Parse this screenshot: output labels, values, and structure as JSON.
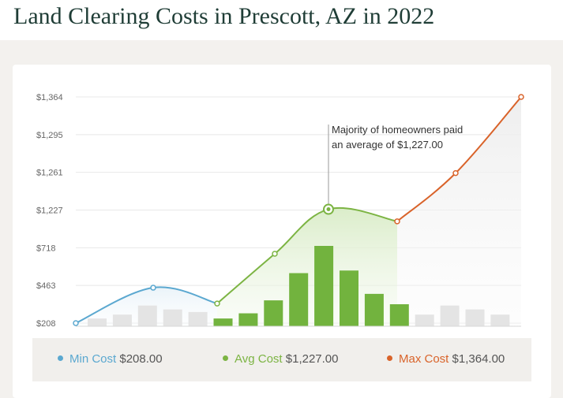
{
  "page": {
    "title": "Land Clearing Costs in Prescott, AZ in 2022"
  },
  "chart_data": {
    "type": "line",
    "title": "Land Clearing Costs in Prescott, AZ in 2022",
    "y_ticks": [
      "$1,364",
      "$1,295",
      "$1,261",
      "$1,227",
      "$718",
      "$463",
      "$208"
    ],
    "series": [
      {
        "name": "Min Cost",
        "color": "#5ba8d0"
      },
      {
        "name": "Avg Cost",
        "color": "#7cb443"
      },
      {
        "name": "Max Cost",
        "color": "#d9632a"
      }
    ],
    "curve_points": [
      {
        "tick_pos": 0.0,
        "segment": "min"
      },
      {
        "tick_pos": 0.94,
        "segment": "min"
      },
      {
        "tick_pos": 0.52,
        "segment": "avg"
      },
      {
        "tick_pos": 1.84,
        "segment": "avg"
      },
      {
        "tick_pos": 3.02,
        "segment": "avg",
        "highlight": true
      },
      {
        "tick_pos": 2.7,
        "segment": "max"
      },
      {
        "tick_pos": 3.98,
        "segment": "max"
      },
      {
        "tick_pos": 6.0,
        "segment": "max"
      }
    ],
    "bars": {
      "relative_heights": [
        0.06,
        0.09,
        0.16,
        0.13,
        0.11,
        0.06,
        0.1,
        0.2,
        0.41,
        0.62,
        0.43,
        0.25,
        0.17,
        0.09,
        0.16,
        0.13,
        0.09
      ],
      "highlighted": [
        false,
        false,
        false,
        false,
        false,
        true,
        true,
        true,
        true,
        true,
        true,
        true,
        true,
        false,
        false,
        false,
        false
      ]
    },
    "annotation": {
      "line1": "Majority of homeowners paid",
      "line2": "an average of $1,227.00"
    },
    "legend": [
      {
        "label": "Min Cost",
        "value": "$208.00",
        "color": "#5ba8d0"
      },
      {
        "label": "Avg Cost",
        "value": "$1,227.00",
        "color": "#7cb443"
      },
      {
        "label": "Max Cost",
        "value": "$1,364.00",
        "color": "#d9632a"
      }
    ]
  }
}
